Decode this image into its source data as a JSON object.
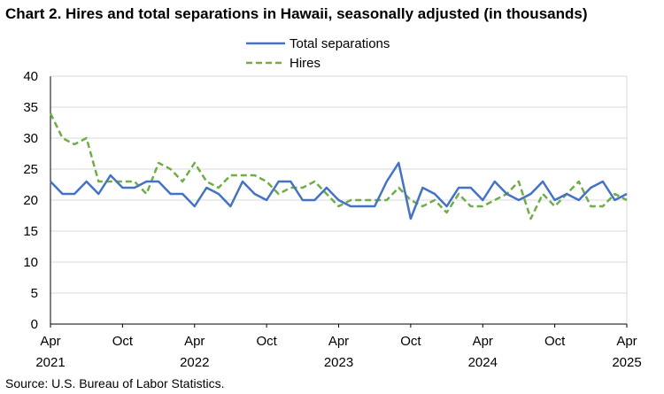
{
  "chart_data": {
    "type": "line",
    "title": "Chart 2. Hires and total separations in Hawaii, seasonally adjusted (in thousands)",
    "source": "Source: U.S. Bureau of Labor Statistics.",
    "xlabel": "",
    "ylabel": "",
    "ylim": [
      0,
      40
    ],
    "yticks": [
      "0",
      "5",
      "10",
      "15",
      "20",
      "25",
      "30",
      "35",
      "40"
    ],
    "grid": true,
    "legend_position": "top-center",
    "x_ticks": [
      {
        "month": "Apr",
        "year": "2021"
      },
      {
        "month": "Oct",
        "year": ""
      },
      {
        "month": "Apr",
        "year": "2022"
      },
      {
        "month": "Oct",
        "year": ""
      },
      {
        "month": "Apr",
        "year": "2023"
      },
      {
        "month": "Oct",
        "year": ""
      },
      {
        "month": "Apr",
        "year": "2024"
      },
      {
        "month": "Oct",
        "year": ""
      },
      {
        "month": "Apr",
        "year": "2025"
      }
    ],
    "x": [
      "2021-04",
      "2021-05",
      "2021-06",
      "2021-07",
      "2021-08",
      "2021-09",
      "2021-10",
      "2021-11",
      "2021-12",
      "2022-01",
      "2022-02",
      "2022-03",
      "2022-04",
      "2022-05",
      "2022-06",
      "2022-07",
      "2022-08",
      "2022-09",
      "2022-10",
      "2022-11",
      "2022-12",
      "2023-01",
      "2023-02",
      "2023-03",
      "2023-04",
      "2023-05",
      "2023-06",
      "2023-07",
      "2023-08",
      "2023-09",
      "2023-10",
      "2023-11",
      "2023-12",
      "2024-01",
      "2024-02",
      "2024-03",
      "2024-04",
      "2024-05",
      "2024-06",
      "2024-07",
      "2024-08",
      "2024-09",
      "2024-10",
      "2024-11",
      "2024-12",
      "2025-01",
      "2025-02",
      "2025-03",
      "2025-04"
    ],
    "series": [
      {
        "name": "Total separations",
        "color": "#4472C4",
        "style": "solid",
        "values": [
          23,
          21,
          21,
          23,
          21,
          24,
          22,
          22,
          23,
          23,
          21,
          21,
          19,
          22,
          21,
          19,
          23,
          21,
          20,
          23,
          23,
          20,
          20,
          22,
          20,
          19,
          19,
          19,
          23,
          26,
          17,
          22,
          21,
          19,
          22,
          22,
          20,
          23,
          21,
          20,
          21,
          23,
          20,
          21,
          20,
          22,
          23,
          20,
          21
        ]
      },
      {
        "name": "Hires",
        "color": "#70AD47",
        "style": "dashed",
        "values": [
          34,
          30,
          29,
          30,
          23,
          23,
          23,
          23,
          21,
          26,
          25,
          23,
          26,
          23,
          22,
          24,
          24,
          24,
          23,
          21,
          22,
          22,
          23,
          21,
          19,
          20,
          20,
          20,
          20,
          22,
          20,
          19,
          20,
          18,
          21,
          19,
          19,
          20,
          21,
          23,
          17,
          21,
          19,
          21,
          23,
          19,
          19,
          21,
          20
        ]
      }
    ]
  }
}
